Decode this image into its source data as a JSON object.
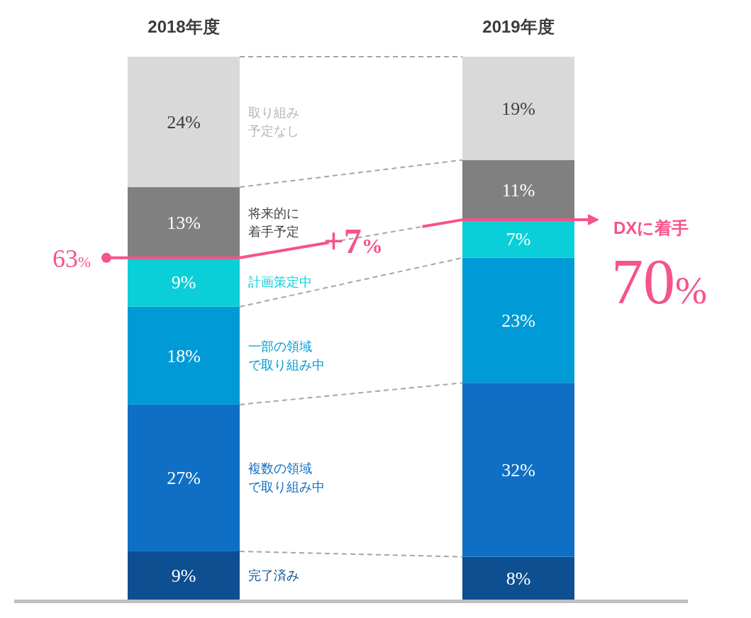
{
  "chart_data": {
    "type": "bar",
    "stacked": true,
    "legend": false,
    "categories": [
      "2018年度",
      "2019年度"
    ],
    "series": [
      {
        "name": "完了済み",
        "color": "#0d4f91",
        "values": [
          9,
          8
        ],
        "value_labels": [
          "9%",
          "8%"
        ]
      },
      {
        "name": "複数の領域で取り組み中",
        "color": "#0e6fc5",
        "values": [
          27,
          32
        ],
        "value_labels": [
          "27%",
          "32%"
        ]
      },
      {
        "name": "一部の領域で取り組み中",
        "color": "#009bd6",
        "values": [
          18,
          23
        ],
        "value_labels": [
          "18%",
          "23%"
        ]
      },
      {
        "name": "計画策定中",
        "color": "#0bcfd8",
        "values": [
          9,
          7
        ],
        "value_labels": [
          "9%",
          "7%"
        ]
      },
      {
        "name": "将来的に着手予定",
        "color": "#808080",
        "values": [
          13,
          11
        ],
        "value_labels": [
          "13%",
          "11%"
        ]
      },
      {
        "name": "取り組み予定なし",
        "color": "#d9d9d9",
        "values": [
          24,
          19
        ],
        "value_labels": [
          "24%",
          "19%"
        ]
      }
    ],
    "annotations": [
      "63%",
      "+7%",
      "DXに着手",
      "70%"
    ]
  }
}
